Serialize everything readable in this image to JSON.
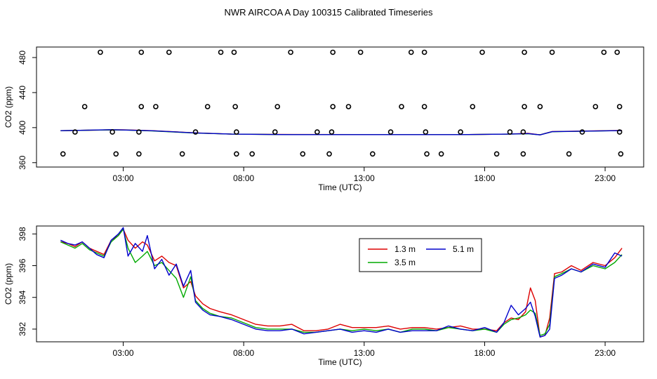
{
  "title": "NWR AIRCOA A  Day 100315  Calibrated Timeseries",
  "colors": {
    "red": "#dd0000",
    "green": "#00aa00",
    "blue": "#0000cc",
    "axis": "#000000"
  },
  "chart_data": [
    {
      "type": "scatter",
      "name": "top",
      "xlabel": "Time (UTC)",
      "ylabel": "CO2 (ppm)",
      "xlim": [
        -0.6,
        24.6
      ],
      "ylim": [
        355,
        492
      ],
      "xticks": [
        3,
        8,
        13,
        18,
        23
      ],
      "xtick_labels": [
        "03:00",
        "08:00",
        "13:00",
        "18:00",
        "23:00"
      ],
      "yticks": [
        360,
        400,
        440,
        480
      ],
      "ytick_labels": [
        "360",
        "400",
        "440",
        "480"
      ],
      "points": {
        "x": [
          2.05,
          3.75,
          4.9,
          7.05,
          7.6,
          9.95,
          11.7,
          12.85,
          14.95,
          15.5,
          17.9,
          19.65,
          20.8,
          22.95,
          23.5,
          1.4,
          3.75,
          4.35,
          6.5,
          7.65,
          9.4,
          11.7,
          12.35,
          14.55,
          15.5,
          17.5,
          19.65,
          20.3,
          22.6,
          23.6,
          1.0,
          2.55,
          3.65,
          6.0,
          7.7,
          9.3,
          11.05,
          11.65,
          14.1,
          15.55,
          17.0,
          19.05,
          19.6,
          22.05,
          23.6,
          0.5,
          2.7,
          3.65,
          5.45,
          7.7,
          8.35,
          10.45,
          11.55,
          13.35,
          15.6,
          16.2,
          18.5,
          19.6,
          21.5,
          23.65
        ],
        "y": [
          486,
          486,
          486,
          486,
          486,
          486,
          486,
          486,
          486,
          486,
          486,
          486,
          486,
          486,
          486,
          424,
          424,
          424,
          424,
          424,
          424,
          424,
          424,
          424,
          424,
          424,
          424,
          424,
          424,
          424,
          395,
          395,
          395,
          395,
          395,
          395,
          395,
          395,
          395,
          395,
          395,
          395,
          395,
          395,
          395,
          370,
          370,
          370,
          370,
          370,
          370,
          370,
          370,
          370,
          370,
          370,
          370,
          370,
          370,
          370
        ]
      },
      "series": [
        {
          "name": "1.3 m",
          "color": "#dd0000",
          "x": [
            0.4,
            2.5,
            3.0,
            4.2,
            6.0,
            7.5,
            10.0,
            14.0,
            17.0,
            19.0,
            19.8,
            20.3,
            20.8,
            23.7
          ],
          "y": [
            396.5,
            397.5,
            397.5,
            396.5,
            394.0,
            392.6,
            392.2,
            392.0,
            392.0,
            392.6,
            393.5,
            391.8,
            395.5,
            396.8
          ]
        },
        {
          "name": "3.5 m",
          "color": "#00aa00",
          "x": [
            0.4,
            2.5,
            3.0,
            4.2,
            6.0,
            7.5,
            10.0,
            14.0,
            17.0,
            19.0,
            19.8,
            20.3,
            20.8,
            23.7
          ],
          "y": [
            396.5,
            397.5,
            397.3,
            396.3,
            393.8,
            392.6,
            392.0,
            392.0,
            392.0,
            392.6,
            393.0,
            391.8,
            395.3,
            396.6
          ]
        },
        {
          "name": "5.1 m",
          "color": "#0000cc",
          "x": [
            0.4,
            2.5,
            3.0,
            4.2,
            6.0,
            7.5,
            10.0,
            14.0,
            17.0,
            19.0,
            19.8,
            20.3,
            20.8,
            23.7
          ],
          "y": [
            396.5,
            397.6,
            397.3,
            396.4,
            393.9,
            392.6,
            392.0,
            392.0,
            392.0,
            392.6,
            393.2,
            391.7,
            395.4,
            396.6
          ]
        }
      ]
    },
    {
      "type": "line",
      "name": "bottom",
      "xlabel": "Time (UTC)",
      "ylabel": "CO2 (ppm)",
      "xlim": [
        -0.6,
        24.6
      ],
      "ylim": [
        391.2,
        398.5
      ],
      "xticks": [
        3,
        8,
        13,
        18,
        23
      ],
      "xtick_labels": [
        "03:00",
        "08:00",
        "13:00",
        "18:00",
        "23:00"
      ],
      "yticks": [
        392,
        394,
        396,
        398
      ],
      "ytick_labels": [
        "392",
        "394",
        "396",
        "398"
      ],
      "legend": {
        "position": "top-center",
        "entries": [
          "1.3 m",
          "3.5 m",
          "5.1 m"
        ]
      },
      "series": [
        {
          "name": "1.3 m",
          "color": "#dd0000",
          "x": [
            0.4,
            0.7,
            1.0,
            1.3,
            1.6,
            1.9,
            2.2,
            2.5,
            2.8,
            3.0,
            3.2,
            3.5,
            3.8,
            4.0,
            4.3,
            4.6,
            4.9,
            5.2,
            5.5,
            5.8,
            6.0,
            6.3,
            6.6,
            7.0,
            7.5,
            8.0,
            8.5,
            9.0,
            9.5,
            10.0,
            10.5,
            11.0,
            11.5,
            12.0,
            12.5,
            13.0,
            13.5,
            14.0,
            14.5,
            15.0,
            15.5,
            16.0,
            16.5,
            17.0,
            17.5,
            18.0,
            18.5,
            18.8,
            19.1,
            19.4,
            19.7,
            19.9,
            20.1,
            20.3,
            20.5,
            20.7,
            20.9,
            21.2,
            21.6,
            22.0,
            22.5,
            23.0,
            23.4,
            23.7
          ],
          "y": [
            397.5,
            397.4,
            397.2,
            397.5,
            397.1,
            396.9,
            396.7,
            397.6,
            397.9,
            398.3,
            397.6,
            397.1,
            397.5,
            397.3,
            396.3,
            396.6,
            396.2,
            396.0,
            394.6,
            395.0,
            394.1,
            393.6,
            393.3,
            393.1,
            392.9,
            392.6,
            392.3,
            392.2,
            392.2,
            392.3,
            391.9,
            391.9,
            392.0,
            392.3,
            392.1,
            392.1,
            392.1,
            392.2,
            392.0,
            392.1,
            392.1,
            392.0,
            392.1,
            392.2,
            392.0,
            392.0,
            391.9,
            392.4,
            392.7,
            392.6,
            393.1,
            394.6,
            393.8,
            391.5,
            391.6,
            392.7,
            395.5,
            395.6,
            396.0,
            395.7,
            396.2,
            396.0,
            396.5,
            397.1
          ]
        },
        {
          "name": "3.5 m",
          "color": "#00aa00",
          "x": [
            0.4,
            0.7,
            1.0,
            1.3,
            1.6,
            1.9,
            2.2,
            2.5,
            2.8,
            3.0,
            3.2,
            3.5,
            3.8,
            4.0,
            4.3,
            4.6,
            4.9,
            5.2,
            5.5,
            5.8,
            6.0,
            6.3,
            6.6,
            7.0,
            7.5,
            8.0,
            8.5,
            9.0,
            9.5,
            10.0,
            10.5,
            11.0,
            11.5,
            12.0,
            12.5,
            13.0,
            13.5,
            14.0,
            14.5,
            15.0,
            15.5,
            16.0,
            16.5,
            17.0,
            17.5,
            18.0,
            18.5,
            18.8,
            19.1,
            19.4,
            19.7,
            19.9,
            20.1,
            20.3,
            20.5,
            20.7,
            20.9,
            21.2,
            21.6,
            22.0,
            22.5,
            23.0,
            23.4,
            23.7
          ],
          "y": [
            397.5,
            397.3,
            397.1,
            397.4,
            397.0,
            396.8,
            396.6,
            397.5,
            397.9,
            398.3,
            397.1,
            396.2,
            396.6,
            396.9,
            396.0,
            396.2,
            395.7,
            395.2,
            394.0,
            395.3,
            393.8,
            393.3,
            393.0,
            392.8,
            392.7,
            392.4,
            392.1,
            392.0,
            392.0,
            392.0,
            391.8,
            391.8,
            391.9,
            392.0,
            391.9,
            392.0,
            391.9,
            392.0,
            391.8,
            392.0,
            392.0,
            391.9,
            392.1,
            392.0,
            391.9,
            392.0,
            391.8,
            392.3,
            392.6,
            392.7,
            392.9,
            393.2,
            393.0,
            391.6,
            391.7,
            392.3,
            395.3,
            395.5,
            395.8,
            395.6,
            396.0,
            395.8,
            396.2,
            396.7
          ]
        },
        {
          "name": "5.1 m",
          "color": "#0000cc",
          "x": [
            0.4,
            0.7,
            1.0,
            1.3,
            1.6,
            1.9,
            2.2,
            2.5,
            2.8,
            3.0,
            3.2,
            3.5,
            3.8,
            4.0,
            4.3,
            4.6,
            4.9,
            5.2,
            5.5,
            5.8,
            6.0,
            6.3,
            6.6,
            7.0,
            7.5,
            8.0,
            8.5,
            9.0,
            9.5,
            10.0,
            10.5,
            11.0,
            11.5,
            12.0,
            12.5,
            13.0,
            13.5,
            14.0,
            14.5,
            15.0,
            15.5,
            16.0,
            16.5,
            17.0,
            17.5,
            18.0,
            18.5,
            18.8,
            19.1,
            19.4,
            19.7,
            19.9,
            20.1,
            20.3,
            20.5,
            20.7,
            20.9,
            21.2,
            21.6,
            22.0,
            22.5,
            23.0,
            23.4,
            23.7
          ],
          "y": [
            397.6,
            397.4,
            397.3,
            397.5,
            397.1,
            396.7,
            396.5,
            397.6,
            398.0,
            398.4,
            396.6,
            397.4,
            396.9,
            397.9,
            395.8,
            396.4,
            395.4,
            396.1,
            394.7,
            395.7,
            393.7,
            393.2,
            392.9,
            392.8,
            392.6,
            392.3,
            392.0,
            391.9,
            391.9,
            392.0,
            391.7,
            391.8,
            391.9,
            392.0,
            391.8,
            391.9,
            391.8,
            392.0,
            391.8,
            391.9,
            391.9,
            391.9,
            392.2,
            392.0,
            391.9,
            392.1,
            391.8,
            392.4,
            393.5,
            392.9,
            393.3,
            393.7,
            392.8,
            391.5,
            391.6,
            392.0,
            395.2,
            395.4,
            395.8,
            395.6,
            396.1,
            395.9,
            396.8,
            396.6
          ]
        }
      ]
    }
  ]
}
